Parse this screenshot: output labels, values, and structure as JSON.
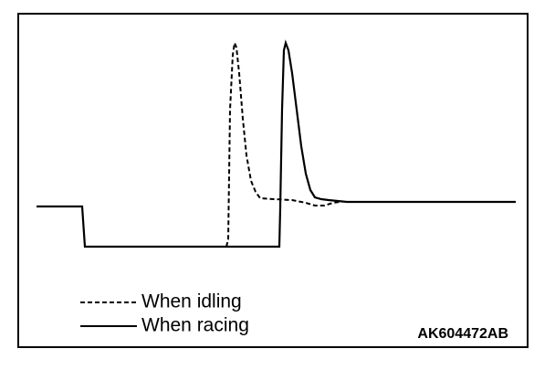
{
  "legend": [
    {
      "label": "When idling"
    },
    {
      "label": "When racing"
    }
  ],
  "figure_id": "AK604472AB"
}
